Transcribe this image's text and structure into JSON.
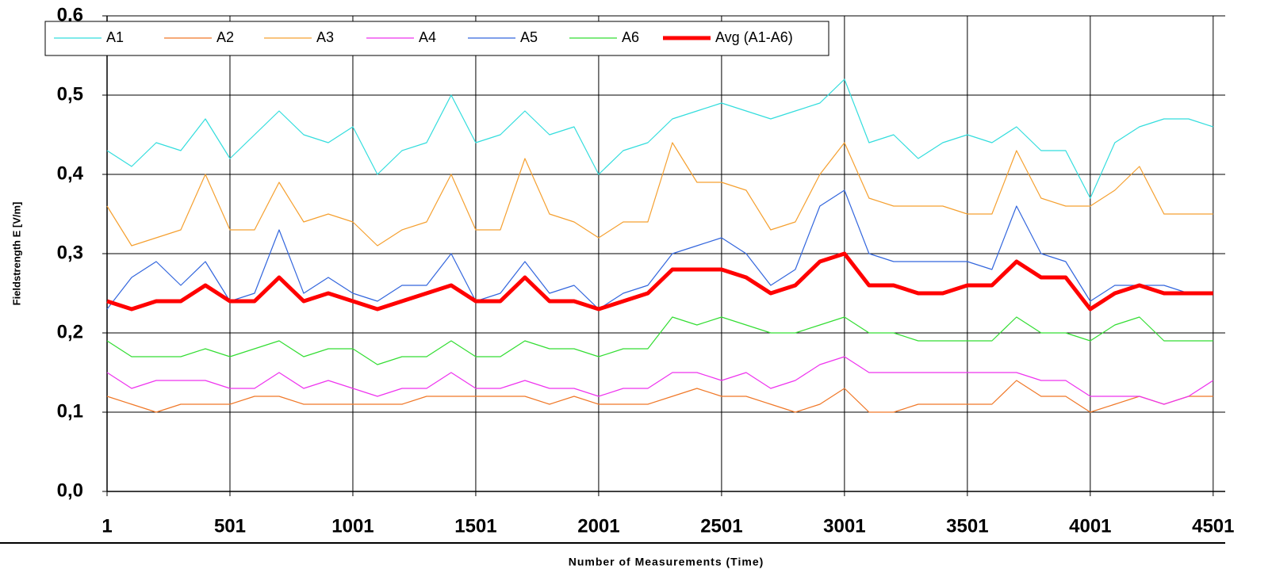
{
  "chart_data": {
    "type": "line",
    "x_label": "Number of  Measurements (Time)",
    "y_label": "Fieldstrength E [V/m]",
    "x": [
      1,
      101,
      201,
      301,
      401,
      501,
      601,
      701,
      801,
      901,
      1001,
      1101,
      1201,
      1301,
      1401,
      1501,
      1601,
      1701,
      1801,
      1901,
      2001,
      2101,
      2201,
      2301,
      2401,
      2501,
      2601,
      2701,
      2801,
      2901,
      3001,
      3101,
      3201,
      3301,
      3401,
      3501,
      3601,
      3701,
      3801,
      3901,
      4001,
      4101,
      4201,
      4301,
      4401,
      4501
    ],
    "xlim": [
      1,
      4550
    ],
    "xticks": [
      1,
      501,
      1001,
      1501,
      2001,
      2501,
      3001,
      3501,
      4001,
      4501
    ],
    "ylim": [
      0,
      0.6
    ],
    "yticks": [
      {
        "value": 0,
        "label": "0,0"
      },
      {
        "value": 0.1,
        "label": "0,1"
      },
      {
        "value": 0.2,
        "label": "0,2"
      },
      {
        "value": 0.3,
        "label": "0,3"
      },
      {
        "value": 0.4,
        "label": "0,4"
      },
      {
        "value": 0.5,
        "label": "0,5"
      },
      {
        "value": 0.6,
        "label": "0,6"
      }
    ],
    "grid": true,
    "series": [
      {
        "name": "A1",
        "color": "#33dddd",
        "width": 1.2,
        "values": [
          0.43,
          0.41,
          0.44,
          0.43,
          0.47,
          0.42,
          0.45,
          0.48,
          0.45,
          0.44,
          0.46,
          0.4,
          0.43,
          0.44,
          0.5,
          0.44,
          0.45,
          0.48,
          0.45,
          0.46,
          0.4,
          0.43,
          0.44,
          0.47,
          0.48,
          0.49,
          0.48,
          0.47,
          0.48,
          0.49,
          0.52,
          0.44,
          0.45,
          0.42,
          0.44,
          0.45,
          0.44,
          0.46,
          0.43,
          0.43,
          0.37,
          0.44,
          0.46,
          0.47,
          0.47,
          0.46
        ]
      },
      {
        "name": "A2",
        "color": "#f07828",
        "width": 1.2,
        "values": [
          0.12,
          0.11,
          0.1,
          0.11,
          0.11,
          0.11,
          0.12,
          0.12,
          0.11,
          0.11,
          0.11,
          0.11,
          0.11,
          0.12,
          0.12,
          0.12,
          0.12,
          0.12,
          0.11,
          0.12,
          0.11,
          0.11,
          0.11,
          0.12,
          0.13,
          0.12,
          0.12,
          0.11,
          0.1,
          0.11,
          0.13,
          0.1,
          0.1,
          0.11,
          0.11,
          0.11,
          0.11,
          0.14,
          0.12,
          0.12,
          0.1,
          0.11,
          0.12,
          0.11,
          0.12,
          0.12
        ]
      },
      {
        "name": "A3",
        "color": "#f5a030",
        "width": 1.2,
        "values": [
          0.36,
          0.31,
          0.32,
          0.33,
          0.4,
          0.33,
          0.33,
          0.39,
          0.34,
          0.35,
          0.34,
          0.31,
          0.33,
          0.34,
          0.4,
          0.33,
          0.33,
          0.42,
          0.35,
          0.34,
          0.32,
          0.34,
          0.34,
          0.44,
          0.39,
          0.39,
          0.38,
          0.33,
          0.34,
          0.4,
          0.44,
          0.37,
          0.36,
          0.36,
          0.36,
          0.35,
          0.35,
          0.43,
          0.37,
          0.36,
          0.36,
          0.38,
          0.41,
          0.35,
          0.35,
          0.35
        ]
      },
      {
        "name": "A4",
        "color": "#ee33ee",
        "width": 1.2,
        "values": [
          0.15,
          0.13,
          0.14,
          0.14,
          0.14,
          0.13,
          0.13,
          0.15,
          0.13,
          0.14,
          0.13,
          0.12,
          0.13,
          0.13,
          0.15,
          0.13,
          0.13,
          0.14,
          0.13,
          0.13,
          0.12,
          0.13,
          0.13,
          0.15,
          0.15,
          0.14,
          0.15,
          0.13,
          0.14,
          0.16,
          0.17,
          0.15,
          0.15,
          0.15,
          0.15,
          0.15,
          0.15,
          0.15,
          0.14,
          0.14,
          0.12,
          0.12,
          0.12,
          0.11,
          0.12,
          0.14
        ]
      },
      {
        "name": "A5",
        "color": "#3366dd",
        "width": 1.2,
        "values": [
          0.23,
          0.27,
          0.29,
          0.26,
          0.29,
          0.24,
          0.25,
          0.33,
          0.25,
          0.27,
          0.25,
          0.24,
          0.26,
          0.26,
          0.3,
          0.24,
          0.25,
          0.29,
          0.25,
          0.26,
          0.23,
          0.25,
          0.26,
          0.3,
          0.31,
          0.32,
          0.3,
          0.26,
          0.28,
          0.36,
          0.38,
          0.3,
          0.29,
          0.29,
          0.29,
          0.29,
          0.28,
          0.36,
          0.3,
          0.29,
          0.24,
          0.26,
          0.26,
          0.26,
          0.25,
          0.25
        ]
      },
      {
        "name": "A6",
        "color": "#33dd33",
        "width": 1.2,
        "values": [
          0.19,
          0.17,
          0.17,
          0.17,
          0.18,
          0.17,
          0.18,
          0.19,
          0.17,
          0.18,
          0.18,
          0.16,
          0.17,
          0.17,
          0.19,
          0.17,
          0.17,
          0.19,
          0.18,
          0.18,
          0.17,
          0.18,
          0.18,
          0.22,
          0.21,
          0.22,
          0.21,
          0.2,
          0.2,
          0.21,
          0.22,
          0.2,
          0.2,
          0.19,
          0.19,
          0.19,
          0.19,
          0.22,
          0.2,
          0.2,
          0.19,
          0.21,
          0.22,
          0.19,
          0.19,
          0.19
        ]
      },
      {
        "name": "Avg (A1-A6)",
        "color": "#ff0000",
        "width": 5,
        "values": [
          0.24,
          0.23,
          0.24,
          0.24,
          0.26,
          0.24,
          0.24,
          0.27,
          0.24,
          0.25,
          0.24,
          0.23,
          0.24,
          0.25,
          0.26,
          0.24,
          0.24,
          0.27,
          0.24,
          0.24,
          0.23,
          0.24,
          0.25,
          0.28,
          0.28,
          0.28,
          0.27,
          0.25,
          0.26,
          0.29,
          0.3,
          0.26,
          0.26,
          0.25,
          0.25,
          0.26,
          0.26,
          0.29,
          0.27,
          0.27,
          0.23,
          0.25,
          0.26,
          0.25,
          0.25,
          0.25
        ]
      }
    ]
  }
}
